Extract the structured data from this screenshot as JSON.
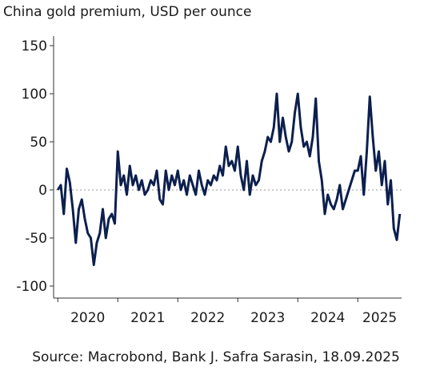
{
  "chart_data": {
    "type": "line",
    "title": "China gold premium, USD per ounce",
    "source": "Source: Macrobond, Bank J. Safra Sarasin, 18.09.2025",
    "x": [
      2020,
      2020.05,
      2020.1,
      2020.15,
      2020.2,
      2020.25,
      2020.3,
      2020.35,
      2020.4,
      2020.45,
      2020.5,
      2020.55,
      2020.6,
      2020.65,
      2020.7,
      2020.75,
      2020.8,
      2020.85,
      2020.9,
      2020.95,
      2021,
      2021.05,
      2021.1,
      2021.15,
      2021.2,
      2021.25,
      2021.3,
      2021.35,
      2021.4,
      2021.45,
      2021.5,
      2021.55,
      2021.6,
      2021.65,
      2021.7,
      2021.75,
      2021.8,
      2021.85,
      2021.9,
      2021.95,
      2022,
      2022.05,
      2022.1,
      2022.15,
      2022.2,
      2022.25,
      2022.3,
      2022.35,
      2022.4,
      2022.45,
      2022.5,
      2022.55,
      2022.6,
      2022.65,
      2022.7,
      2022.75,
      2022.8,
      2022.85,
      2022.9,
      2022.95,
      2023,
      2023.05,
      2023.1,
      2023.15,
      2023.2,
      2023.25,
      2023.3,
      2023.35,
      2023.4,
      2023.45,
      2023.5,
      2023.55,
      2023.6,
      2023.65,
      2023.7,
      2023.75,
      2023.8,
      2023.85,
      2023.9,
      2023.95,
      2024,
      2024.05,
      2024.1,
      2024.15,
      2024.2,
      2024.25,
      2024.3,
      2024.35,
      2024.4,
      2024.45,
      2024.5,
      2024.55,
      2024.6,
      2024.65,
      2024.7,
      2024.75,
      2024.8,
      2024.85,
      2024.9,
      2024.95,
      2025,
      2025.05,
      2025.1,
      2025.15,
      2025.2,
      2025.25,
      2025.3,
      2025.35,
      2025.4,
      2025.45,
      2025.5,
      2025.55,
      2025.6,
      2025.65,
      2025.7
    ],
    "series": [
      {
        "name": "China gold premium",
        "color": "#0c1f4e",
        "values": [
          0,
          5,
          -25,
          22,
          8,
          -20,
          -55,
          -20,
          -10,
          -30,
          -45,
          -50,
          -78,
          -55,
          -45,
          -20,
          -50,
          -30,
          -25,
          -35,
          40,
          5,
          15,
          -5,
          25,
          5,
          15,
          0,
          10,
          -5,
          0,
          10,
          5,
          20,
          -10,
          -15,
          20,
          0,
          15,
          5,
          20,
          0,
          10,
          -5,
          15,
          5,
          -5,
          20,
          5,
          -5,
          10,
          5,
          15,
          10,
          25,
          15,
          45,
          25,
          30,
          20,
          45,
          15,
          0,
          30,
          -5,
          15,
          5,
          10,
          30,
          40,
          55,
          50,
          65,
          100,
          50,
          75,
          55,
          40,
          50,
          80,
          100,
          65,
          45,
          50,
          35,
          55,
          95,
          30,
          10,
          -25,
          -5,
          -15,
          -20,
          -10,
          5,
          -20,
          -10,
          0,
          10,
          20,
          20,
          35,
          -5,
          40,
          97,
          55,
          20,
          40,
          5,
          30,
          -15,
          10,
          -40,
          -52,
          -25
        ]
      }
    ],
    "xlim": [
      2019.97,
      2025.73
    ],
    "xticks": [
      2020,
      2021,
      2022,
      2023,
      2024,
      2025
    ],
    "ylim": [
      -110,
      160
    ],
    "yticks": [
      -100,
      -50,
      0,
      50,
      100,
      150
    ],
    "zero_line": true
  }
}
